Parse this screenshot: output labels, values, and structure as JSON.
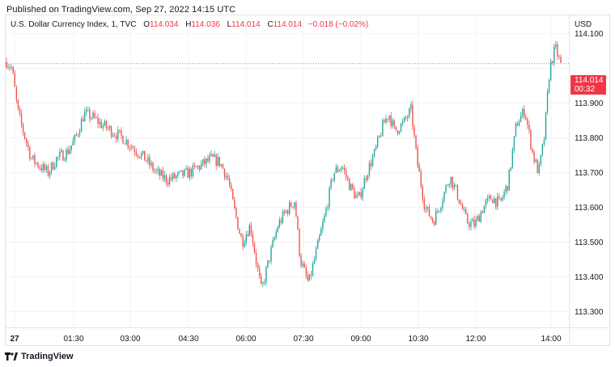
{
  "published": "Published on TradingView.com, Sep 27, 2022 14:15 UTC",
  "legend": {
    "symbol": "U.S. Dollar Currency Index, 1, TVC",
    "open_label": "O",
    "open": "114.034",
    "high_label": "H",
    "high": "114.036",
    "low_label": "L",
    "low": "114.014",
    "close_label": "C",
    "close": "114.014",
    "change": "−0.018 (−0.02%)"
  },
  "currency": "USD",
  "price_tag": {
    "price": "114.014",
    "countdown": "00:32"
  },
  "footer": {
    "brand": "TradingView",
    "logo": "tradingview-logo-icon"
  },
  "colors": {
    "up": "#26a69a",
    "down": "#ef5350",
    "accent": "#f23645",
    "grid": "#f0f3fa"
  },
  "chart_data": {
    "type": "candlestick",
    "y_ticks": [
      "114.100",
      "114.000",
      "113.900",
      "113.800",
      "113.700",
      "113.600",
      "113.500",
      "113.400",
      "113.300"
    ],
    "x_ticks": [
      "27",
      "01:30",
      "03:00",
      "04:30",
      "06:00",
      "07:30",
      "09:00",
      "10:30",
      "12:00",
      "14:00"
    ],
    "ylim": [
      113.255,
      114.155
    ],
    "last_price": 114.014,
    "price_path": [
      [
        0.0,
        114.02
      ],
      [
        0.01,
        114.0
      ],
      [
        0.02,
        113.88
      ],
      [
        0.03,
        113.82
      ],
      [
        0.045,
        113.74
      ],
      [
        0.06,
        113.72
      ],
      [
        0.075,
        113.7
      ],
      [
        0.09,
        113.74
      ],
      [
        0.11,
        113.76
      ],
      [
        0.125,
        113.8
      ],
      [
        0.14,
        113.87
      ],
      [
        0.155,
        113.86
      ],
      [
        0.17,
        113.84
      ],
      [
        0.19,
        113.82
      ],
      [
        0.21,
        113.8
      ],
      [
        0.23,
        113.77
      ],
      [
        0.25,
        113.74
      ],
      [
        0.27,
        113.7
      ],
      [
        0.29,
        113.68
      ],
      [
        0.31,
        113.69
      ],
      [
        0.33,
        113.7
      ],
      [
        0.35,
        113.72
      ],
      [
        0.37,
        113.74
      ],
      [
        0.385,
        113.73
      ],
      [
        0.4,
        113.68
      ],
      [
        0.41,
        113.6
      ],
      [
        0.425,
        113.5
      ],
      [
        0.44,
        113.55
      ],
      [
        0.45,
        113.45
      ],
      [
        0.46,
        113.36
      ],
      [
        0.475,
        113.46
      ],
      [
        0.49,
        113.55
      ],
      [
        0.505,
        113.59
      ],
      [
        0.52,
        113.62
      ],
      [
        0.53,
        113.45
      ],
      [
        0.545,
        113.38
      ],
      [
        0.56,
        113.48
      ],
      [
        0.575,
        113.58
      ],
      [
        0.59,
        113.7
      ],
      [
        0.605,
        113.72
      ],
      [
        0.62,
        113.66
      ],
      [
        0.635,
        113.62
      ],
      [
        0.65,
        113.7
      ],
      [
        0.665,
        113.76
      ],
      [
        0.68,
        113.84
      ],
      [
        0.69,
        113.87
      ],
      [
        0.7,
        113.82
      ],
      [
        0.715,
        113.84
      ],
      [
        0.73,
        113.88
      ],
      [
        0.74,
        113.74
      ],
      [
        0.755,
        113.6
      ],
      [
        0.77,
        113.56
      ],
      [
        0.785,
        113.62
      ],
      [
        0.8,
        113.69
      ],
      [
        0.815,
        113.63
      ],
      [
        0.83,
        113.56
      ],
      [
        0.845,
        113.55
      ],
      [
        0.86,
        113.6
      ],
      [
        0.875,
        113.63
      ],
      [
        0.89,
        113.61
      ],
      [
        0.905,
        113.67
      ],
      [
        0.92,
        113.84
      ],
      [
        0.935,
        113.88
      ],
      [
        0.95,
        113.75
      ],
      [
        0.96,
        113.7
      ],
      [
        0.97,
        113.8
      ],
      [
        0.98,
        114.0
      ],
      [
        0.99,
        114.06
      ],
      [
        1.0,
        114.01
      ]
    ]
  }
}
